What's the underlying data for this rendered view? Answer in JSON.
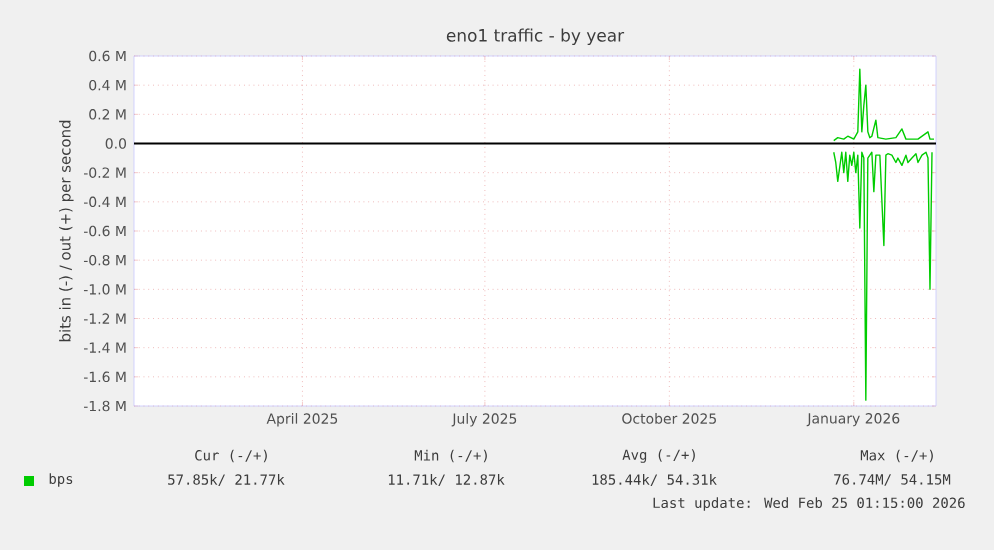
{
  "chart_data": {
    "type": "line",
    "title": "eno1 traffic - by year",
    "ylabel": "bits in (-) / out (+) per second",
    "xlim": [
      "2025-01-21",
      "2026-02-25"
    ],
    "xticks": [
      {
        "value": "2025-04-15",
        "label": "April 2025"
      },
      {
        "value": "2025-07-15",
        "label": "July 2025"
      },
      {
        "value": "2025-10-15",
        "label": "October 2025"
      },
      {
        "value": "2026-01-15",
        "label": "January 2026"
      }
    ],
    "ylim": [
      -1.8,
      0.6
    ],
    "yticks": [
      {
        "value": -1.8,
        "label": "-1.8 M"
      },
      {
        "value": -1.6,
        "label": "-1.6 M"
      },
      {
        "value": -1.4,
        "label": "-1.4 M"
      },
      {
        "value": -1.2,
        "label": "-1.2 M"
      },
      {
        "value": -1.0,
        "label": "-1.0 M"
      },
      {
        "value": -0.8,
        "label": "-0.8 M"
      },
      {
        "value": -0.6,
        "label": "-0.6 M"
      },
      {
        "value": -0.4,
        "label": "-0.4 M"
      },
      {
        "value": -0.2,
        "label": "-0.2 M"
      },
      {
        "value": 0,
        "label": "0.0"
      },
      {
        "value": 0.2,
        "label": "0.2 M"
      },
      {
        "value": 0.4,
        "label": "0.4 M"
      },
      {
        "value": 0.6,
        "label": "0.6 M"
      }
    ],
    "grid": true,
    "legend": "bottom",
    "marker": "none",
    "line_style": "solid",
    "ref_lines": [
      {
        "axis": "y",
        "value": 0,
        "color": "#000000"
      }
    ],
    "series": [
      {
        "name": "bps",
        "color": "#00cc00",
        "x": [
          "2026-01-05",
          "2026-01-07",
          "2026-01-10",
          "2026-01-12",
          "2026-01-15",
          "2026-01-17",
          "2026-01-18",
          "2026-01-19",
          "2026-01-20",
          "2026-01-21",
          "2026-01-22",
          "2026-01-23",
          "2026-01-24",
          "2026-01-26",
          "2026-01-27",
          "2026-01-31",
          "2026-02-05",
          "2026-02-08",
          "2026-02-10",
          "2026-02-16",
          "2026-02-21",
          "2026-02-22",
          "2026-02-24"
        ],
        "values": [
          0.02,
          0.04,
          0.03,
          0.05,
          0.03,
          0.08,
          0.51,
          0.08,
          0.26,
          0.4,
          0.08,
          0.04,
          0.05,
          0.16,
          0.04,
          0.03,
          0.04,
          0.1,
          0.03,
          0.03,
          0.08,
          0.03,
          0.03
        ]
      },
      {
        "color": "#00cc00",
        "x": [
          "2026-01-05",
          "2026-01-06",
          "2026-01-07",
          "2026-01-09",
          "2026-01-10",
          "2026-01-11",
          "2026-01-12",
          "2026-01-13",
          "2026-01-14",
          "2026-01-15",
          "2026-01-16",
          "2026-01-17",
          "2026-01-18",
          "2026-01-19",
          "2026-01-20",
          "2026-01-21",
          "2026-01-22",
          "2026-01-23",
          "2026-01-24",
          "2026-01-25",
          "2026-01-26",
          "2026-01-27",
          "2026-01-28",
          "2026-01-30",
          "2026-01-31",
          "2026-02-01",
          "2026-02-03",
          "2026-02-05",
          "2026-02-06",
          "2026-02-08",
          "2026-02-10",
          "2026-02-11",
          "2026-02-13",
          "2026-02-15",
          "2026-02-16",
          "2026-02-18",
          "2026-02-20",
          "2026-02-21",
          "2026-02-22",
          "2026-02-23"
        ],
        "values": [
          -0.06,
          -0.13,
          -0.26,
          -0.06,
          -0.2,
          -0.06,
          -0.26,
          -0.08,
          -0.15,
          -0.06,
          -0.2,
          -0.08,
          -0.58,
          -0.06,
          -0.1,
          -1.76,
          -0.1,
          -0.08,
          -0.06,
          -0.33,
          -0.08,
          -0.08,
          -0.08,
          -0.7,
          -0.08,
          -0.07,
          -0.08,
          -0.13,
          -0.1,
          -0.15,
          -0.08,
          -0.13,
          -0.1,
          -0.07,
          -0.13,
          -0.08,
          -0.06,
          -0.1,
          -1.0,
          -0.06
        ]
      }
    ],
    "annotations": [
      "Cur (-/+)",
      "Min (-/+)",
      "Avg (-/+)",
      "Max (-/+)",
      "57.85k/ 21.77k",
      "11.71k/ 12.87k",
      "185.44k/ 54.31k",
      "76.74M/ 54.15M",
      "Last update: Wed Feb 25 01:15:00 2026"
    ]
  }
}
